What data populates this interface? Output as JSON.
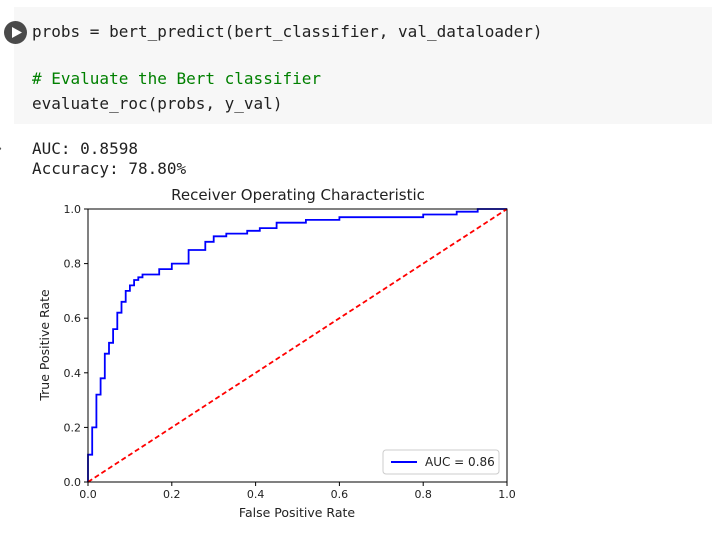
{
  "code_cell": {
    "lines": [
      "probs = bert_predict(bert_classifier, val_dataloader)",
      "",
      "# Evaluate the Bert classifier",
      "evaluate_roc(probs, y_val)"
    ]
  },
  "output": {
    "auc_line": "AUC: 0.8598",
    "accuracy_line": "Accuracy: 78.80%"
  },
  "chart_data": {
    "type": "line",
    "title": "Receiver Operating Characteristic",
    "xlabel": "False Positive Rate",
    "ylabel": "True Positive Rate",
    "xlim": [
      0,
      1
    ],
    "ylim": [
      0,
      1
    ],
    "xticks": [
      "0.0",
      "0.2",
      "0.4",
      "0.6",
      "0.8",
      "1.0"
    ],
    "yticks": [
      "0.0",
      "0.2",
      "0.4",
      "0.6",
      "0.8",
      "1.0"
    ],
    "legend_position": "lower-right",
    "series": [
      {
        "name": "AUC = 0.86",
        "color": "#0000ff",
        "style": "solid",
        "x": [
          0.0,
          0.0,
          0.01,
          0.01,
          0.02,
          0.02,
          0.03,
          0.03,
          0.04,
          0.04,
          0.05,
          0.05,
          0.06,
          0.06,
          0.07,
          0.07,
          0.08,
          0.08,
          0.09,
          0.09,
          0.1,
          0.1,
          0.11,
          0.11,
          0.12,
          0.12,
          0.13,
          0.13,
          0.17,
          0.17,
          0.2,
          0.2,
          0.24,
          0.24,
          0.28,
          0.28,
          0.3,
          0.3,
          0.33,
          0.33,
          0.38,
          0.38,
          0.41,
          0.41,
          0.45,
          0.45,
          0.52,
          0.52,
          0.6,
          0.6,
          0.7,
          0.7,
          0.8,
          0.8,
          0.88,
          0.88,
          0.93,
          0.93,
          1.0
        ],
        "y": [
          0.0,
          0.1,
          0.1,
          0.2,
          0.2,
          0.32,
          0.32,
          0.38,
          0.38,
          0.47,
          0.47,
          0.51,
          0.51,
          0.56,
          0.56,
          0.62,
          0.62,
          0.66,
          0.66,
          0.7,
          0.7,
          0.72,
          0.72,
          0.74,
          0.74,
          0.75,
          0.75,
          0.76,
          0.76,
          0.78,
          0.78,
          0.8,
          0.8,
          0.85,
          0.85,
          0.88,
          0.88,
          0.9,
          0.9,
          0.91,
          0.91,
          0.92,
          0.92,
          0.93,
          0.93,
          0.95,
          0.95,
          0.96,
          0.96,
          0.97,
          0.97,
          0.97,
          0.97,
          0.98,
          0.98,
          0.99,
          0.99,
          1.0,
          1.0
        ]
      },
      {
        "name": "",
        "color": "#ff0000",
        "style": "dashed",
        "x": [
          0,
          1
        ],
        "y": [
          0,
          1
        ]
      }
    ]
  }
}
